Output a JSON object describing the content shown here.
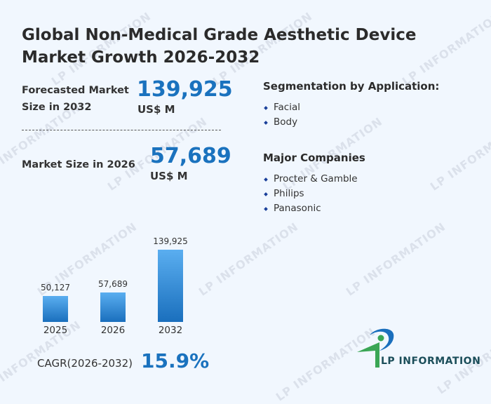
{
  "title": "Global Non-Medical Grade Aesthetic Device Market Growth 2026-2032",
  "forecast": {
    "label_line1": "Forecasted Market",
    "label_line2": "Size in 2032",
    "value": "139,925",
    "unit": "US$ M"
  },
  "current": {
    "label": "Market Size in 2026",
    "value": "57,689",
    "unit": "US$ M"
  },
  "segmentation": {
    "heading": "Segmentation by Application:",
    "items": [
      "Facial",
      "Body"
    ]
  },
  "companies": {
    "heading": "Major Companies",
    "items": [
      "Procter & Gamble",
      "Philips",
      "Panasonic"
    ]
  },
  "chart_data": {
    "type": "bar",
    "categories": [
      "2025",
      "2026",
      "2032"
    ],
    "values": [
      50127,
      57689,
      139925
    ],
    "value_labels": [
      "50,127",
      "57,689",
      "139,925"
    ],
    "ylim": [
      0,
      139925
    ]
  },
  "cagr": {
    "label": "CAGR(2026-2032)",
    "value": "15.9%"
  },
  "logo": {
    "text": "LP INFORMATION"
  },
  "watermark": "LP INFORMATION",
  "colors": {
    "accent": "#1a72be",
    "bar_top": "#5aaef0",
    "bar_bottom": "#1a6fbd",
    "logo_green": "#3aa655",
    "logo_blue": "#1a6fbd"
  }
}
